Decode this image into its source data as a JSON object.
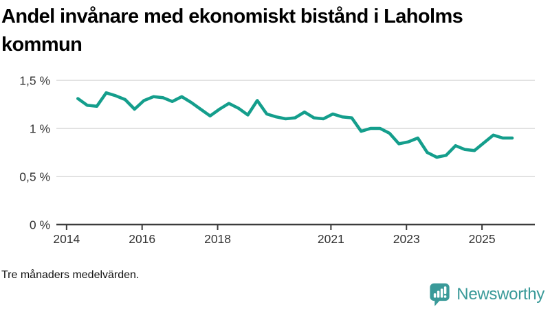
{
  "title": {
    "line1": "Andel invånare med ekonomiskt bistånd i Laholms",
    "line2": "kommun"
  },
  "footnote": "Tre månaders medelvärden.",
  "brand": {
    "name": "Newsworthy",
    "color": "#3a9a99"
  },
  "chart_data": {
    "type": "line",
    "title": "Andel invånare med ekonomiskt bistånd i Laholms kommun",
    "note": "Tre månaders medelvärden.",
    "unit": "%",
    "grid": "horizontal",
    "legend": "none",
    "xlim": [
      2013.73,
      2026.4
    ],
    "ylim": [
      0,
      1.5
    ],
    "x_ticks": [
      {
        "value": 2014,
        "label": "2014"
      },
      {
        "value": 2016,
        "label": "2016"
      },
      {
        "value": 2018,
        "label": "2018"
      },
      {
        "value": 2021,
        "label": "2021"
      },
      {
        "value": 2023,
        "label": "2023"
      },
      {
        "value": 2025,
        "label": "2025"
      }
    ],
    "y_ticks": [
      {
        "value": 0,
        "label": "0 %"
      },
      {
        "value": 0.5,
        "label": "0,5 %"
      },
      {
        "value": 1,
        "label": "1 %"
      },
      {
        "value": 1.5,
        "label": "1,5 %"
      }
    ],
    "x": [
      2014.3,
      2014.55,
      2014.8,
      2015.05,
      2015.3,
      2015.55,
      2015.8,
      2016.05,
      2016.3,
      2016.55,
      2016.8,
      2017.05,
      2017.3,
      2017.55,
      2017.8,
      2018.05,
      2018.3,
      2018.55,
      2018.8,
      2019.05,
      2019.3,
      2019.55,
      2019.8,
      2020.05,
      2020.3,
      2020.55,
      2020.8,
      2021.05,
      2021.3,
      2021.55,
      2021.8,
      2022.05,
      2022.3,
      2022.55,
      2022.8,
      2023.05,
      2023.3,
      2023.55,
      2023.8,
      2024.05,
      2024.3,
      2024.55,
      2024.8,
      2025.05,
      2025.3,
      2025.55,
      2025.8
    ],
    "series": [
      {
        "name": "Andel invånare med ekonomiskt bistånd",
        "color": "#149e8c",
        "values": [
          1.31,
          1.24,
          1.23,
          1.37,
          1.34,
          1.3,
          1.2,
          1.29,
          1.33,
          1.32,
          1.28,
          1.33,
          1.27,
          1.2,
          1.13,
          1.2,
          1.26,
          1.21,
          1.14,
          1.29,
          1.15,
          1.12,
          1.1,
          1.11,
          1.17,
          1.11,
          1.1,
          1.15,
          1.12,
          1.11,
          0.97,
          1.0,
          1.0,
          0.95,
          0.84,
          0.86,
          0.9,
          0.75,
          0.7,
          0.72,
          0.82,
          0.78,
          0.77,
          0.85,
          0.93,
          0.9,
          0.9
        ]
      }
    ],
    "colors": {
      "gridline": "#e2e2e2",
      "axis": "#3c3c3c",
      "tick_label": "#333333"
    }
  }
}
